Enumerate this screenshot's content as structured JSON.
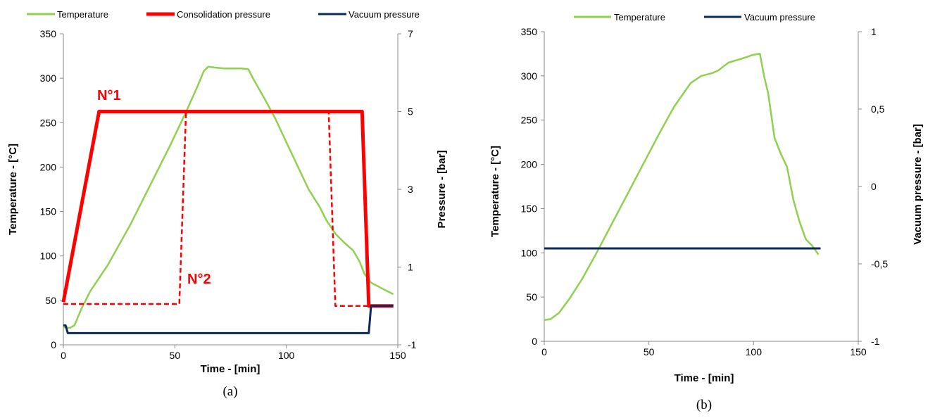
{
  "chart_data": [
    {
      "type": "line",
      "caption": "(a)",
      "xlabel": "Time - [min]",
      "ylabel": "Temperature - [°C]",
      "y2label": "Pressure - [bar]",
      "xlim": [
        0,
        150
      ],
      "ylim": [
        0,
        350
      ],
      "y2lim": [
        -1,
        7
      ],
      "x_ticks": [
        "0",
        "50",
        "100",
        "150"
      ],
      "y_ticks": [
        "0",
        "50",
        "100",
        "150",
        "200",
        "250",
        "300",
        "350"
      ],
      "y2_ticks": [
        "-1",
        "1",
        "3",
        "5",
        "7"
      ],
      "legend_position": "top",
      "annotations": [
        {
          "text": "N°1",
          "x": 15,
          "y": 275
        },
        {
          "text": "N°2",
          "x": 57,
          "y": 76
        }
      ],
      "series": [
        {
          "name": "Temperature",
          "axis": "left",
          "color": "#8fd14f",
          "dash": "solid",
          "points": [
            [
              0,
              20
            ],
            [
              3,
              19
            ],
            [
              5,
              22
            ],
            [
              8,
              40
            ],
            [
              12,
              60
            ],
            [
              20,
              90
            ],
            [
              30,
              135
            ],
            [
              40,
              185
            ],
            [
              48,
              225
            ],
            [
              55,
              262
            ],
            [
              60,
              290
            ],
            [
              63,
              308
            ],
            [
              65,
              313
            ],
            [
              68,
              312
            ],
            [
              72,
              311
            ],
            [
              80,
              311
            ],
            [
              83,
              310
            ],
            [
              85,
              300
            ],
            [
              90,
              278
            ],
            [
              95,
              255
            ],
            [
              100,
              228
            ],
            [
              110,
              175
            ],
            [
              115,
              155
            ],
            [
              118,
              140
            ],
            [
              122,
              125
            ],
            [
              126,
              115
            ],
            [
              130,
              106
            ],
            [
              133,
              93
            ],
            [
              135,
              80
            ],
            [
              138,
              70
            ],
            [
              141,
              66
            ],
            [
              144,
              62
            ],
            [
              148,
              57
            ]
          ]
        },
        {
          "name": "Consolidation pressure",
          "label": "N°1",
          "axis": "right",
          "color": "#ff0000",
          "dash": "solid",
          "points": [
            [
              0,
              0.1
            ],
            [
              16,
              5
            ],
            [
              134,
              5
            ],
            [
              137,
              0
            ],
            [
              148,
              0
            ]
          ]
        },
        {
          "name": "Consolidation pressure",
          "label": "N°2",
          "axis": "right",
          "color": "#ff0000",
          "dash": "dashed",
          "points": [
            [
              0,
              0.05
            ],
            [
              52,
              0.05
            ],
            [
              55,
              5
            ],
            [
              119,
              5
            ],
            [
              122,
              0
            ],
            [
              148,
              0
            ]
          ]
        },
        {
          "name": "Vacuum pressure",
          "axis": "right",
          "color": "#0c2a5c",
          "dash": "solid",
          "points": [
            [
              0,
              -0.5
            ],
            [
              1,
              -0.5
            ],
            [
              2,
              -0.7
            ],
            [
              137,
              -0.7
            ],
            [
              138,
              0
            ],
            [
              148,
              0
            ]
          ]
        }
      ]
    },
    {
      "type": "line",
      "caption": "(b)",
      "xlabel": "Time - [min]",
      "ylabel": "Temperature - [°C]",
      "y2label": "Vacuum pressure - [bar]",
      "xlim": [
        0,
        150
      ],
      "ylim": [
        0,
        350
      ],
      "y2lim": [
        -1,
        1
      ],
      "x_ticks": [
        "0",
        "50",
        "100",
        "150"
      ],
      "y_ticks": [
        "0",
        "50",
        "100",
        "150",
        "200",
        "250",
        "300",
        "350"
      ],
      "y2_ticks": [
        "-1",
        "-0,5",
        "0",
        "0,5",
        "1"
      ],
      "legend_position": "top",
      "series": [
        {
          "name": "Temperature",
          "axis": "left",
          "color": "#8fd14f",
          "dash": "solid",
          "points": [
            [
              0,
              24
            ],
            [
              3,
              25
            ],
            [
              7,
              32
            ],
            [
              12,
              48
            ],
            [
              18,
              70
            ],
            [
              25,
              100
            ],
            [
              35,
              145
            ],
            [
              45,
              190
            ],
            [
              55,
              235
            ],
            [
              62,
              265
            ],
            [
              70,
              292
            ],
            [
              75,
              300
            ],
            [
              80,
              303
            ],
            [
              83,
              306
            ],
            [
              88,
              315
            ],
            [
              95,
              320
            ],
            [
              100,
              324
            ],
            [
              103,
              325
            ],
            [
              105,
              300
            ],
            [
              107,
              280
            ],
            [
              110,
              230
            ],
            [
              113,
              212
            ],
            [
              116,
              197
            ],
            [
              119,
              160
            ],
            [
              122,
              135
            ],
            [
              125,
              115
            ],
            [
              128,
              108
            ],
            [
              131,
              98
            ]
          ]
        },
        {
          "name": "Vacuum pressure",
          "axis": "right",
          "color": "#0c2a5c",
          "dash": "solid",
          "points": [
            [
              0,
              -0.4
            ],
            [
              132,
              -0.4
            ]
          ]
        }
      ]
    }
  ]
}
